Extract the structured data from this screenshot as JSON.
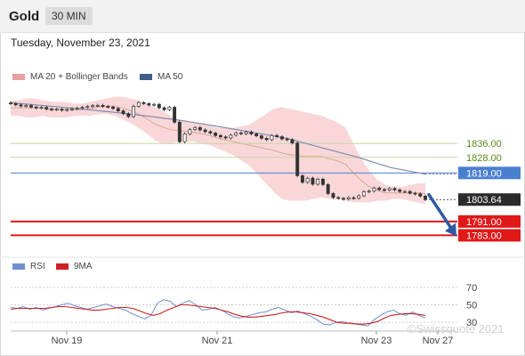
{
  "header": {
    "instrument": "Gold",
    "timeframe": "30 MIN"
  },
  "date_label": "Tuesday, November 23, 2021",
  "legends": {
    "main": [
      {
        "label": "MA 20 + Bollinger Bands",
        "color": "#e8a0a3"
      },
      {
        "label": "MA 50",
        "color": "#3d5d8a"
      }
    ],
    "rsi": [
      {
        "label": "RSI",
        "color": "#6f8fd0"
      },
      {
        "label": "9MA",
        "color": "#cc2222"
      }
    ]
  },
  "watermark": "©Swissquote 2021",
  "colors": {
    "candle": "#333333",
    "band": "#f7c9cc",
    "ma50": "#7d8db0",
    "ma20": "#d8a890",
    "resistance": "#c9d6a4",
    "resistance_label": "#5c8a1a",
    "pivot": "#4a7fd0",
    "support": "#e01818",
    "arrow": "#2d5aa0",
    "price_tag": "#2b2b2b"
  },
  "chart_data": [
    {
      "type": "candlestick",
      "x_ticks": [
        "Nov 19",
        "Nov 21",
        "Nov 23",
        "Nov 27"
      ],
      "y_range": [
        1775,
        1870
      ],
      "levels": [
        {
          "value": 1836.0,
          "label": "1836.00",
          "kind": "resistance"
        },
        {
          "value": 1828.0,
          "label": "1828.00",
          "kind": "resistance"
        },
        {
          "value": 1819.0,
          "label": "1819.00",
          "kind": "pivot"
        },
        {
          "value": 1791.0,
          "label": "1791.00",
          "kind": "support"
        },
        {
          "value": 1783.0,
          "label": "1783.00",
          "kind": "support"
        }
      ],
      "last_price": {
        "value": 1803.64,
        "label": "1803.64"
      },
      "forecast_arrow": {
        "from": 1806.5,
        "to": 1784.0
      },
      "closes": [
        1859.0,
        1858.3,
        1857.6,
        1857.9,
        1857.0,
        1856.5,
        1856.8,
        1855.9,
        1855.5,
        1855.8,
        1855.2,
        1855.6,
        1856.0,
        1856.4,
        1856.9,
        1857.3,
        1857.8,
        1858.0,
        1857.4,
        1857.0,
        1856.2,
        1854.8,
        1853.2,
        1851.5,
        1857.5,
        1859.6,
        1859.0,
        1858.2,
        1858.6,
        1856.6,
        1855.5,
        1856.9,
        1848.3,
        1837.0,
        1841.5,
        1844.0,
        1845.2,
        1843.8,
        1842.8,
        1842.0,
        1840.6,
        1839.8,
        1839.2,
        1840.8,
        1842.1,
        1841.6,
        1842.6,
        1841.5,
        1840.4,
        1839.0,
        1838.2,
        1840.6,
        1839.9,
        1838.6,
        1838.2,
        1836.3,
        1817.4,
        1813.6,
        1816.0,
        1812.5,
        1815.4,
        1812.3,
        1807.1,
        1804.8,
        1804.3,
        1803.9,
        1804.7,
        1804.4,
        1805.8,
        1808.2,
        1808.5,
        1810.3,
        1809.4,
        1809.1,
        1810.0,
        1809.2,
        1808.3,
        1808.3,
        1807.3,
        1806.9,
        1805.6,
        1803.6
      ],
      "ma20_upper": [
        1861,
        1861,
        1862,
        1862,
        1861,
        1860,
        1860,
        1860,
        1859,
        1859,
        1860,
        1861,
        1862,
        1863,
        1863,
        1862,
        1861,
        1859,
        1857,
        1855,
        1852,
        1850,
        1849,
        1848,
        1847,
        1846,
        1845,
        1845,
        1845,
        1846,
        1847,
        1850,
        1853,
        1856,
        1857,
        1856,
        1855,
        1854,
        1853,
        1852,
        1850,
        1848,
        1845,
        1836,
        1827,
        1820,
        1815,
        1812,
        1811,
        1811,
        1812,
        1813,
        1813
      ],
      "ma20_lower": [
        1852,
        1852,
        1851,
        1851,
        1852,
        1851,
        1851,
        1851,
        1852,
        1852,
        1852,
        1853,
        1853,
        1852,
        1850,
        1848,
        1845,
        1842,
        1838,
        1836,
        1836,
        1837,
        1837,
        1837,
        1836,
        1835,
        1833,
        1831,
        1829,
        1826,
        1823,
        1818,
        1813,
        1808,
        1804,
        1803,
        1803,
        1803,
        1804,
        1805,
        1804,
        1804,
        1803,
        1802,
        1802,
        1802,
        1803,
        1803,
        1804,
        1804,
        1803,
        1802,
        1801
      ],
      "ma50": [
        1859.5,
        1857.8,
        1856.0,
        1854.0,
        1851.7,
        1849.1,
        1845.8,
        1842.4,
        1839.0,
        1833.6,
        1828.3,
        1822.1,
        1818.3
      ],
      "rsi": [
        47,
        46,
        48,
        45,
        47,
        44,
        46,
        48,
        50,
        52,
        49,
        47,
        45,
        47,
        49,
        51,
        48,
        46,
        44,
        40,
        37,
        34,
        38,
        52,
        56,
        54,
        48,
        52,
        55,
        50,
        44,
        45,
        47,
        44,
        40,
        36,
        35,
        37,
        39,
        41,
        42,
        45,
        47,
        44,
        41,
        43,
        40,
        37,
        33,
        28,
        27,
        30,
        31,
        29,
        28,
        27,
        26,
        33,
        38,
        42,
        44,
        40,
        38,
        42,
        38,
        35
      ],
      "rsi_ma9": [
        45,
        46,
        46,
        46,
        46,
        46,
        47,
        48,
        48,
        47,
        46,
        45,
        44,
        44,
        45,
        46,
        47,
        47,
        46,
        43,
        40,
        38,
        40,
        44,
        47,
        50,
        50,
        49,
        48,
        47,
        46,
        44,
        42,
        39,
        37,
        36,
        36,
        37,
        38,
        39,
        41,
        42,
        42,
        41,
        40,
        38,
        36,
        33,
        30,
        29,
        29,
        28,
        28,
        29,
        31,
        35,
        38,
        39,
        40,
        40,
        39,
        38
      ]
    }
  ],
  "rsi_axis": {
    "ticks": [
      {
        "value": 70,
        "label": "70"
      },
      {
        "value": 50,
        "label": "50"
      },
      {
        "value": 30,
        "label": "30"
      }
    ]
  }
}
